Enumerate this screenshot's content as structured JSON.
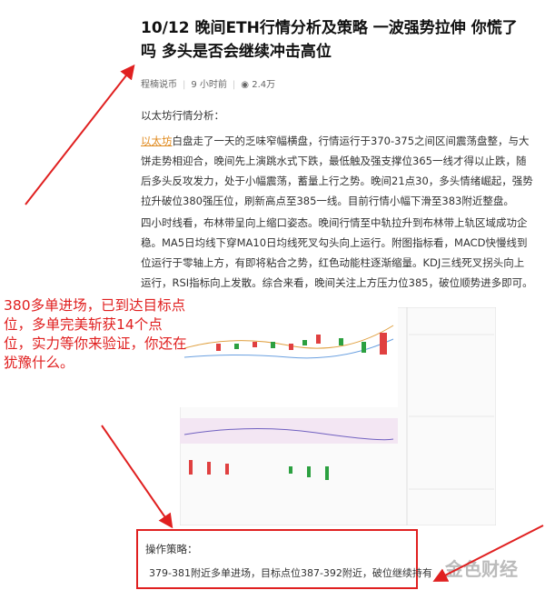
{
  "article": {
    "title": "10/12 晚间ETH行情分析及策略 一波强势拉伸 你慌了吗 多头是否会继续冲击高位",
    "author": "程楠说币",
    "time": "9 小时前",
    "views": "2.4万",
    "intro": "以太坊行情分析：",
    "paragraphs": [
      {
        "link": "以太坊",
        "text": "白盘走了一天的乏味窄幅横盘，行情运行于370-375之间区间震荡盘整，与大饼走势相迎合，晚间先上演跳水式下跌，最低触及强支撑位365一线才得以止跌，随后多头反攻发力，处于小幅震荡，蓄量上行之势。晚间21点30，多头情绪崛起，强势拉升破位380强压位，刷新高点至385一线。目前行情小幅下滑至383附近整盘。"
      },
      {
        "text": "四小时线看，布林带呈向上缩口姿态。晚间行情至中轨拉升到布林带上轨区域成功企稳。MA5日均线下穿MA10日均线死叉勾头向上运行。附图指标看，MACD快慢线到位运行于零轴上方，有即将粘合之势，红色动能柱逐渐缩量。KDJ三线死叉拐头向上运行，RSI指标向上发散。综合来看，晚间关注上方压力位385，破位顺势进多即可。"
      }
    ]
  },
  "annotation": "380多单进场，已到达目标点位，多单完美斩获14个点位，实力等你来验证，你还在犹豫什么。",
  "strategy": {
    "heading": "操作策略：",
    "text": "379-381附近多单进场，目标点位387-392附近，破位继续持有"
  },
  "watermark": "金色财经"
}
